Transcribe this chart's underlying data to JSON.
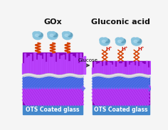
{
  "left_title": "GOx",
  "right_title": "Gluconic acid",
  "glucose_label": "Glucose",
  "ots_label": "OTS Coated glass",
  "hplus": "H⁺",
  "bg_color": "#f5f5f5",
  "enzyme_color1": "#89c4de",
  "enzyme_color2": "#5a9ab8",
  "enzyme_highlight": "#b8dff0",
  "linker_color": "#d44000",
  "purple_dark": "#8800bb",
  "purple_light": "#bb44ff",
  "blue_layer": "#3355cc",
  "blue_layer2": "#5577ee",
  "ots_bg": "#4488cc",
  "ots_text": "#ffffff",
  "arrow_color": "#333333",
  "wavy_color": "#cccccc",
  "title_fontsize": 8,
  "label_fontsize": 5.5,
  "arrow_fontsize": 5,
  "hplus_fontsize": 5
}
